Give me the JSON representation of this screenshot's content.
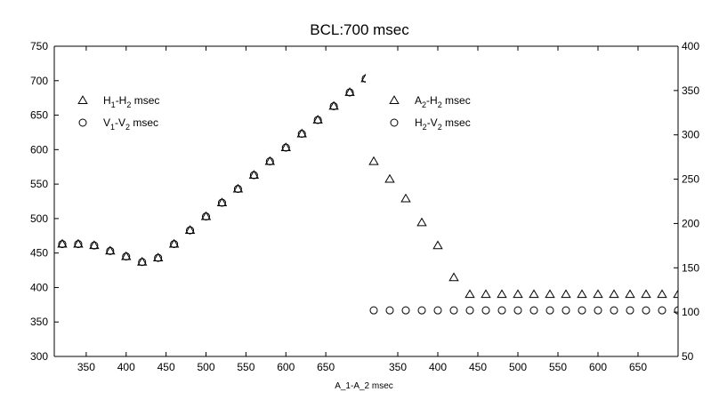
{
  "chart_data": [
    {
      "type": "scatter",
      "title": "BCL:700 msec",
      "xlabel": "A_1-A_2 msec",
      "ylabel": "",
      "xlim": [
        310,
        700
      ],
      "ylim": [
        300,
        750
      ],
      "yaxis_side": "left",
      "grid": false,
      "legend_placement": "top-left",
      "xticks": [
        350,
        400,
        450,
        500,
        550,
        600,
        650
      ],
      "yticks": [
        300,
        350,
        400,
        450,
        500,
        550,
        600,
        650,
        700,
        750
      ],
      "series": [
        {
          "name": "H1-H2 msec",
          "legend_main_1": "H",
          "legend_sub_1": "1",
          "legend_main_2": "-H",
          "legend_sub_2": "2",
          "legend_tail": " msec",
          "marker": "triangle",
          "x": [
            320,
            340,
            360,
            380,
            400,
            420,
            440,
            460,
            480,
            500,
            520,
            540,
            560,
            580,
            600,
            620,
            640,
            660,
            680,
            700
          ],
          "y": [
            463,
            463,
            461,
            453,
            445,
            437,
            443,
            463,
            483,
            503,
            523,
            543,
            563,
            583,
            603,
            623,
            643,
            663,
            683,
            703
          ]
        },
        {
          "name": "V1-V2 msec",
          "legend_main_1": "V",
          "legend_sub_1": "1",
          "legend_main_2": "-V",
          "legend_sub_2": "2",
          "legend_tail": " msec",
          "marker": "circle",
          "x": [
            320,
            340,
            360,
            380,
            400,
            420,
            440,
            460,
            480,
            500,
            520,
            540,
            560,
            580,
            600,
            620,
            640,
            660,
            680,
            700
          ],
          "y": [
            463,
            463,
            461,
            453,
            445,
            437,
            443,
            463,
            483,
            503,
            523,
            543,
            563,
            583,
            603,
            623,
            643,
            663,
            683,
            703
          ]
        }
      ]
    },
    {
      "type": "scatter",
      "title": "",
      "xlabel": "",
      "ylabel": "",
      "xlim": [
        310,
        700
      ],
      "ylim": [
        50,
        400
      ],
      "yaxis_side": "right",
      "grid": false,
      "legend_placement": "top-left",
      "xticks": [
        350,
        400,
        450,
        500,
        550,
        600,
        650
      ],
      "yticks": [
        50,
        100,
        150,
        200,
        250,
        300,
        350,
        400
      ],
      "series": [
        {
          "name": "A2-H2 msec",
          "legend_main_1": "A",
          "legend_sub_1": "2",
          "legend_main_2": "-H",
          "legend_sub_2": "2",
          "legend_tail": " msec",
          "marker": "triangle",
          "x": [
            320,
            340,
            360,
            380,
            400,
            420,
            440,
            460,
            480,
            500,
            520,
            540,
            560,
            580,
            600,
            620,
            640,
            660,
            680,
            700
          ],
          "y": [
            270,
            250,
            228,
            201,
            175,
            139,
            120,
            120,
            120,
            120,
            120,
            120,
            120,
            120,
            120,
            120,
            120,
            120,
            120,
            120
          ]
        },
        {
          "name": "H2-V2 msec",
          "legend_main_1": "H",
          "legend_sub_1": "2",
          "legend_main_2": "-V",
          "legend_sub_2": "2",
          "legend_tail": " msec",
          "marker": "circle",
          "x": [
            320,
            340,
            360,
            380,
            400,
            420,
            440,
            460,
            480,
            500,
            520,
            540,
            560,
            580,
            600,
            620,
            640,
            660,
            680,
            700
          ],
          "y": [
            102,
            102,
            102,
            102,
            102,
            102,
            102,
            102,
            102,
            102,
            102,
            102,
            102,
            102,
            102,
            102,
            102,
            102,
            102,
            102
          ]
        }
      ]
    }
  ]
}
